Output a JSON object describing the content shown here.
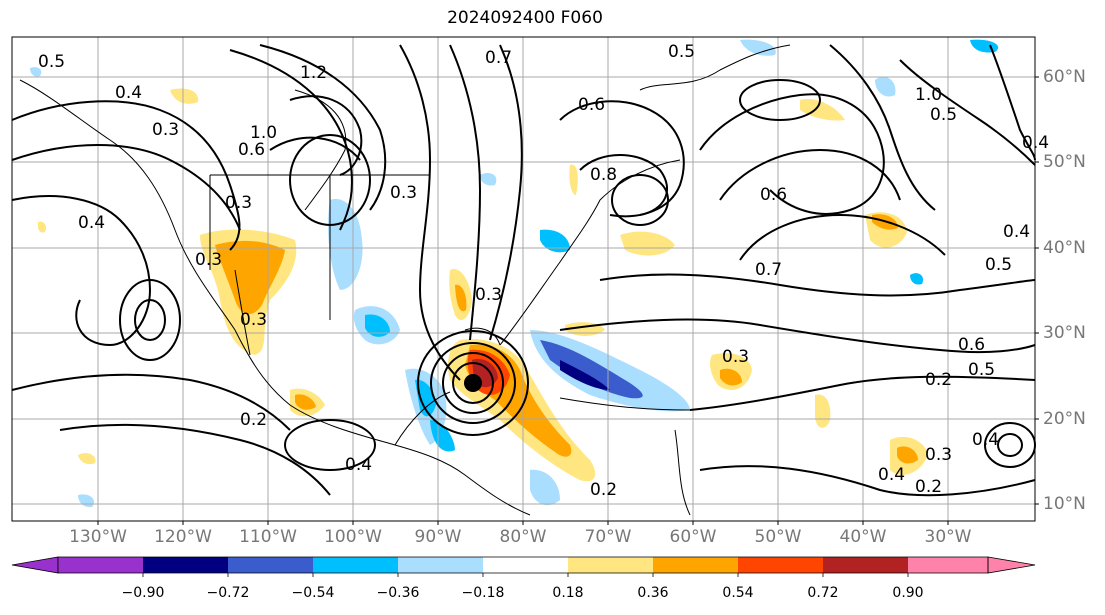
{
  "title": "2024092400 F060",
  "lon_labels": [
    "130°W",
    "120°W",
    "110°W",
    "100°W",
    "90°W",
    "80°W",
    "70°W",
    "60°W",
    "50°W",
    "40°W",
    "30°W"
  ],
  "lat_labels": [
    "60°N",
    "50°N",
    "40°N",
    "30°N",
    "20°N",
    "10°N"
  ],
  "colorbar": {
    "ticks": [
      "−0.90",
      "−0.72",
      "−0.54",
      "−0.36",
      "−0.18",
      "0.18",
      "0.36",
      "0.54",
      "0.72",
      "0.90"
    ],
    "colors": [
      "#9932cc",
      "#000080",
      "#3a5ccc",
      "#00bfff",
      "#aadeff",
      "#ffffff",
      "#ffe680",
      "#ffa500",
      "#ff4500",
      "#b22222",
      "#ff82ab"
    ]
  },
  "contour_labels": [
    "0.5",
    "0.4",
    "1.2",
    "0.7",
    "0.5",
    "0.6",
    "0.5",
    "0.3",
    "1.0",
    "0.6",
    "1.0",
    "0.4",
    "0.3",
    "0.3",
    "0.8",
    "0.6",
    "0.4",
    "0.3",
    "0.3",
    "0.7",
    "0.4",
    "0.5",
    "0.3",
    "0.6",
    "0.3",
    "0.5",
    "0.2",
    "0.2",
    "0.4",
    "0.3",
    "0.2",
    "0.4",
    "0.2",
    "0.4"
  ]
}
